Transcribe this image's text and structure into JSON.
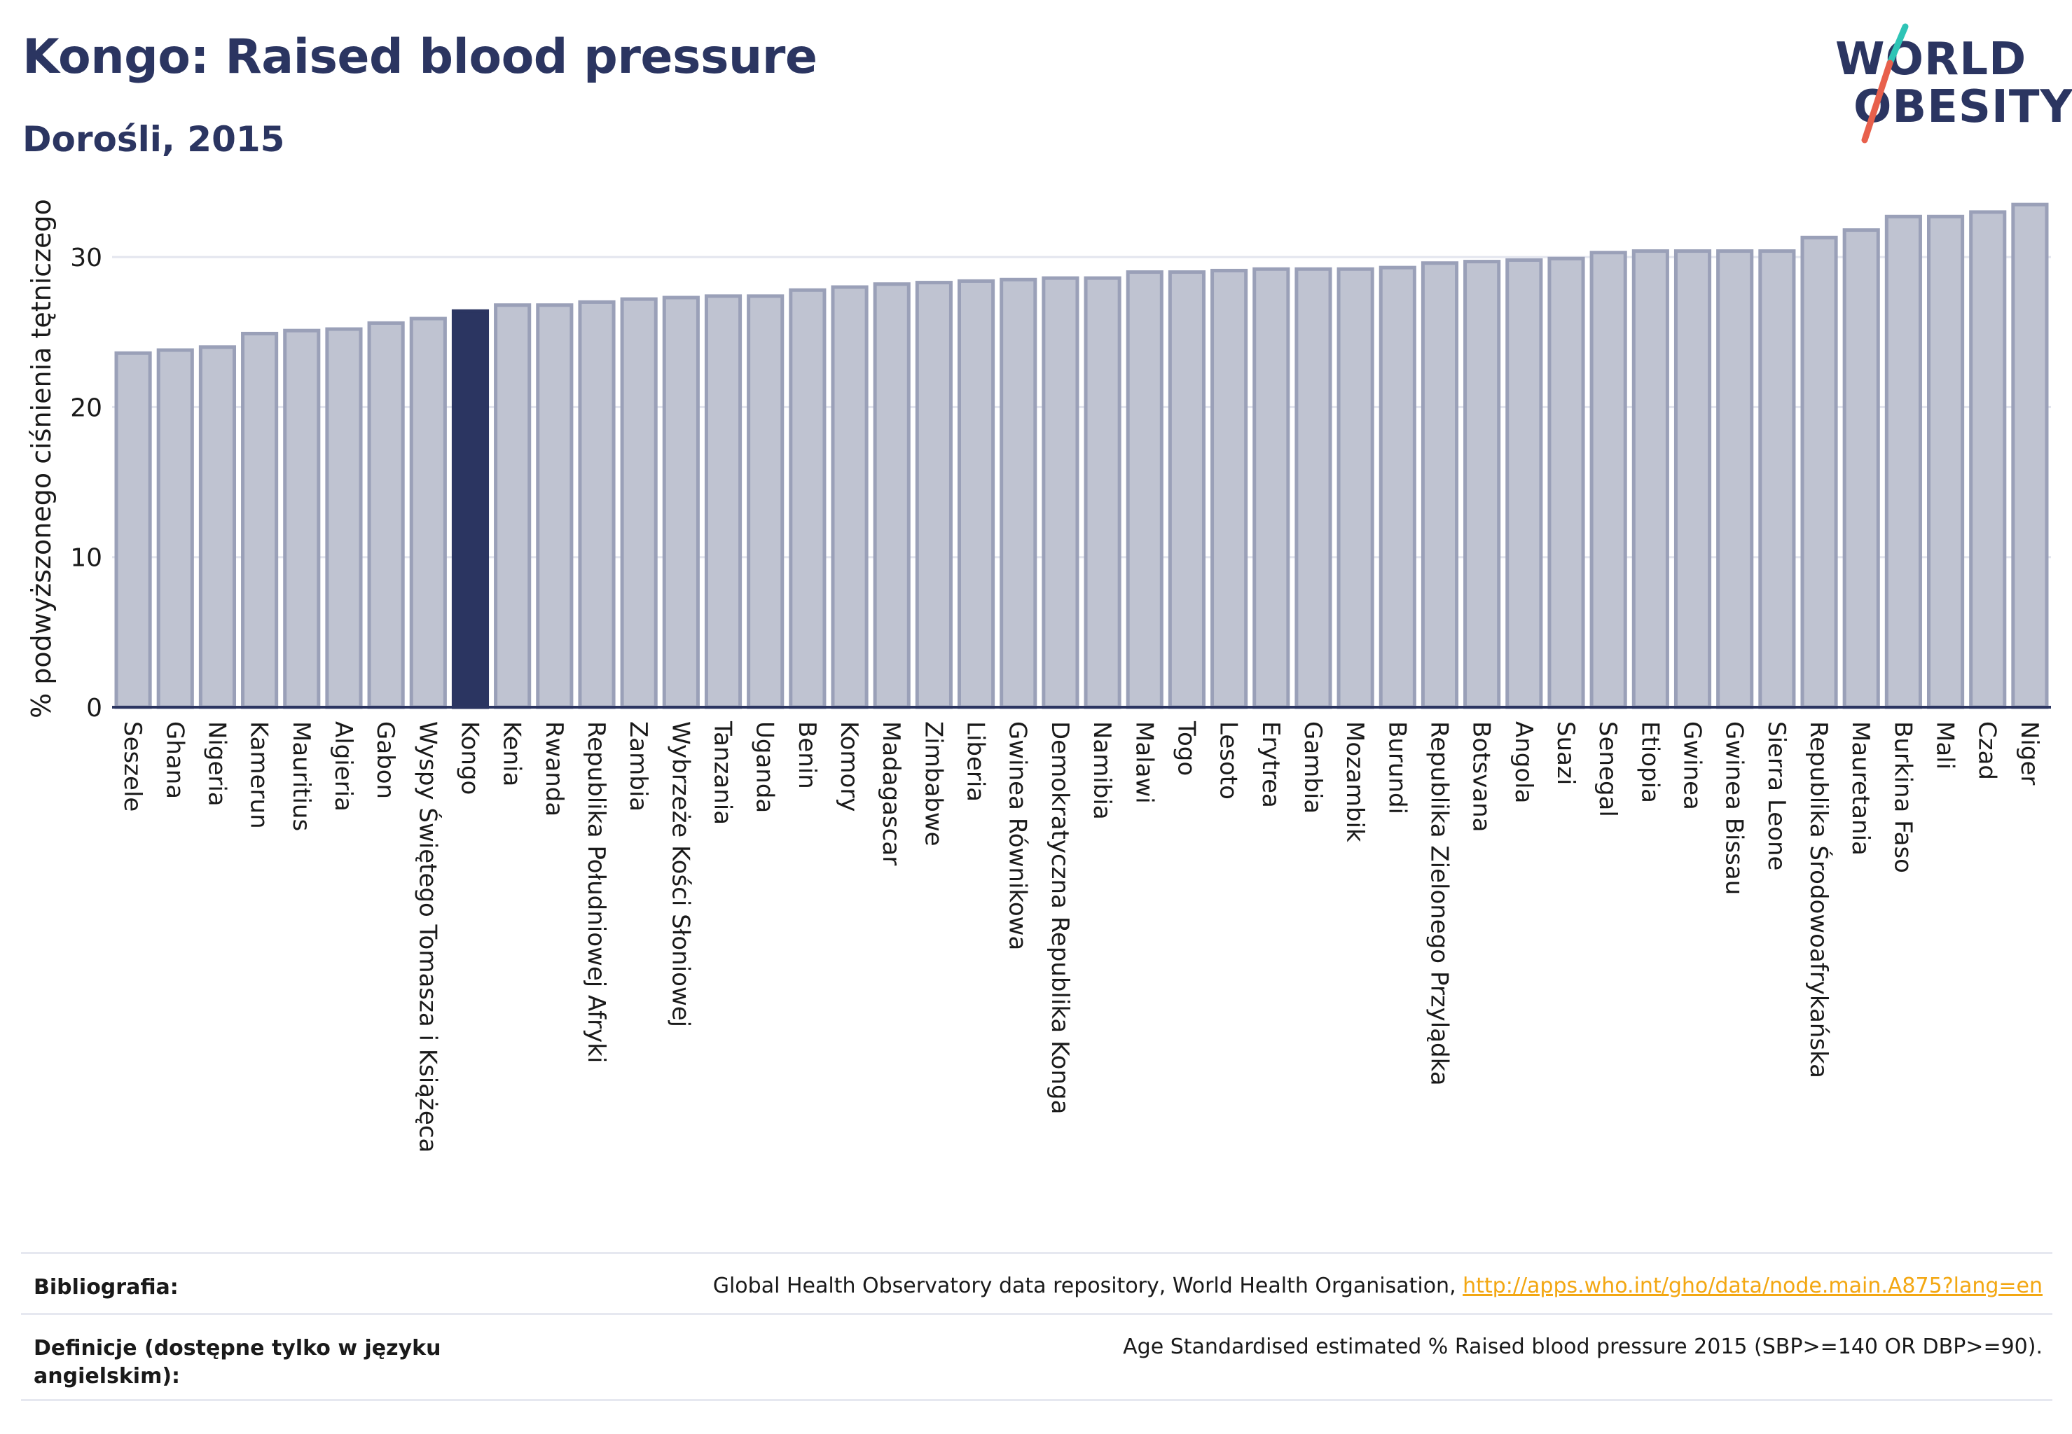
{
  "header": {
    "title": "Kongo: Raised blood pressure",
    "subtitle": "Dorośli, 2015"
  },
  "logo": {
    "line1": "WORLD",
    "line2": "OBESITY",
    "slash_colors": [
      "#2ec4b6",
      "#e8604c"
    ]
  },
  "colors": {
    "bar": "#bfc3d1",
    "bar_stroke": "#9aa0b8",
    "highlight": "#2b3561",
    "text": "#2b3561",
    "link": "#f3a712"
  },
  "chart_data": {
    "type": "bar",
    "ylabel": "% podwyższonego ciśnienia tętniczego",
    "ylim": [
      0,
      35
    ],
    "yticks": [
      0,
      10,
      20,
      30
    ],
    "grid": true,
    "highlight": "Kongo",
    "categories": [
      "Seszele",
      "Ghana",
      "Nigeria",
      "Kamerun",
      "Mauritius",
      "Algieria",
      "Gabon",
      "Wyspy Świętego Tomasza i Książęca",
      "Kongo",
      "Kenia",
      "Rwanda",
      "Republika Południowej Afryki",
      "Zambia",
      "Wybrzeże Kości Słoniowej",
      "Tanzania",
      "Uganda",
      "Benin",
      "Komory",
      "Madagascar",
      "Zimbabwe",
      "Liberia",
      "Gwinea Równikowa",
      "Demokratyczna Republika Konga",
      "Namibia",
      "Malawi",
      "Togo",
      "Lesoto",
      "Erytrea",
      "Gambia",
      "Mozambik",
      "Burundi",
      "Republika Zielonego Przylądka",
      "Botsvana",
      "Angola",
      "Suazi",
      "Senegal",
      "Etiopia",
      "Gwinea",
      "Gwinea Bissau",
      "Sierra Leone",
      "Republika Środowoafrykańska",
      "Mauretania",
      "Burkina Faso",
      "Mali",
      "Czad",
      "Niger"
    ],
    "values": [
      23.6,
      23.8,
      24.0,
      24.9,
      25.1,
      25.2,
      25.6,
      25.9,
      26.4,
      26.8,
      26.8,
      27.0,
      27.2,
      27.3,
      27.4,
      27.4,
      27.8,
      28.0,
      28.2,
      28.3,
      28.4,
      28.5,
      28.6,
      28.6,
      29.0,
      29.0,
      29.1,
      29.2,
      29.2,
      29.2,
      29.3,
      29.6,
      29.7,
      29.8,
      29.9,
      30.3,
      30.4,
      30.4,
      30.4,
      30.4,
      31.3,
      31.8,
      32.7,
      32.7,
      33.0,
      33.5
    ]
  },
  "footer": {
    "bibliography_label": "Bibliografia:",
    "bibliography_text": "Global Health Observatory data repository, World Health Organisation, ",
    "bibliography_link": "http://apps.who.int/gho/data/node.main.A875?lang=en",
    "definition_label": "Definicje (dostępne tylko w języku angielskim):",
    "definition_text": "Age Standardised estimated % Raised blood pressure 2015 (SBP>=140 OR DBP>=90)."
  }
}
